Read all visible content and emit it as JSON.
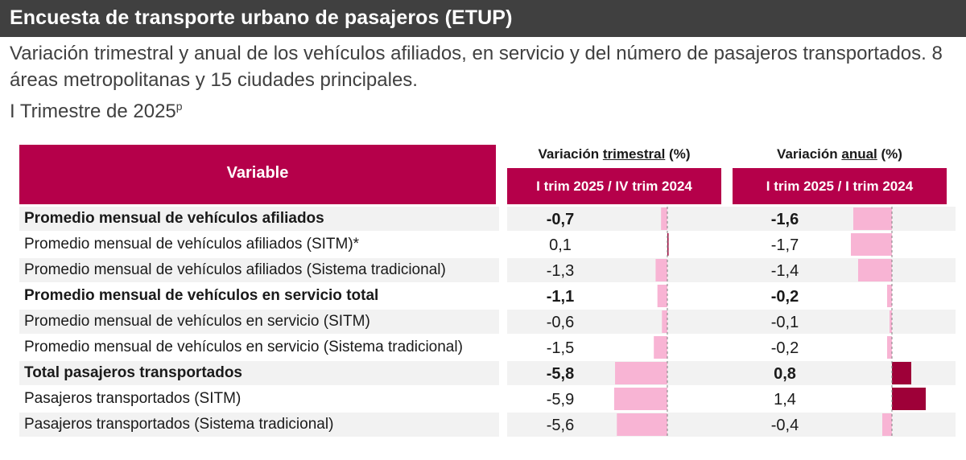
{
  "header": {
    "title": "Encuesta de transporte urbano de pasajeros (ETUP)",
    "subtitle": "Variación trimestral y anual de los vehículos afiliados, en servicio y del número de pasajeros transportados. 8 áreas metropolitanas y 15 ciudades principales.",
    "period": "I Trimestre de 2025",
    "period_mark": "p"
  },
  "table": {
    "variable_header": "Variable",
    "quarterly": {
      "label_prefix": "Variación ",
      "label_underlined": "trimestral",
      "label_suffix": " (%)",
      "sub": "I trim 2025 / IV trim 2024"
    },
    "annual": {
      "label_prefix": "Variación ",
      "label_underlined": "anual",
      "label_suffix": " (%)",
      "sub": "I trim 2025 / I trim 2024"
    }
  },
  "colors": {
    "header_bg": "#b5004a",
    "negative_bar": "#f8b4d4",
    "positive_bar": "#9e0038",
    "axis": "#7f7f7f"
  },
  "chart_data": {
    "type": "table",
    "series": [
      {
        "name": "Variación trimestral (%)",
        "values": [
          -0.7,
          0.1,
          -1.3,
          -1.1,
          -0.6,
          -1.5,
          -5.8,
          -5.9,
          -5.6
        ]
      },
      {
        "name": "Variación anual (%)",
        "values": [
          -1.6,
          -1.7,
          -1.4,
          -0.2,
          -0.1,
          -0.2,
          0.8,
          1.4,
          -0.4
        ]
      }
    ],
    "rows": [
      {
        "label": "Promedio mensual de vehículos afiliados",
        "q": "-0,7",
        "a": "-1,6",
        "bold": true
      },
      {
        "label": "Promedio mensual de vehículos afiliados (SITM)*",
        "q": "0,1",
        "a": "-1,7",
        "bold": false
      },
      {
        "label": "Promedio mensual de vehículos afiliados (Sistema tradicional)",
        "q": "-1,3",
        "a": "-1,4",
        "bold": false
      },
      {
        "label": "Promedio mensual de vehículos en servicio total",
        "q": "-1,1",
        "a": "-0,2",
        "bold": true
      },
      {
        "label": "Promedio mensual de vehículos en servicio (SITM)",
        "q": "-0,6",
        "a": "-0,1",
        "bold": false
      },
      {
        "label": "Promedio mensual de vehículos en servicio (Sistema tradicional)",
        "q": "-1,5",
        "a": "-0,2",
        "bold": false
      },
      {
        "label": " Total pasajeros transportados",
        "q": "-5,8",
        "a": "0,8",
        "bold": true
      },
      {
        "label": "Pasajeros transportados (SITM)",
        "q": "-5,9",
        "a": "1,4",
        "bold": false
      },
      {
        "label": "Pasajeros transportados (Sistema tradicional)",
        "q": "-5,6",
        "a": "-0,4",
        "bold": false
      }
    ]
  }
}
